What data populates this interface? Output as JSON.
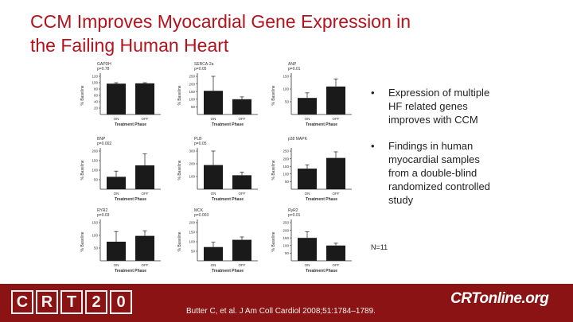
{
  "slide": {
    "title_line1": "CCM Improves Myocardial Gene Expression in",
    "title_line2": "the Failing Human Heart",
    "bullets": [
      "Expression of multiple HF related genes improves with CCM",
      "Findings in human myocardial samples from a double-blind randomized controlled study"
    ],
    "bullet_glyph": "•",
    "n_label": "N=11",
    "footer": {
      "logo_chars": [
        "C",
        "R",
        "T",
        "2",
        "0"
      ],
      "citation": "Butter C, et al. J Am Coll Cardiol 2008;51:1784–1789.",
      "crtonline": "CRTonline.org"
    }
  },
  "colors": {
    "title": "#b5121b",
    "bar": "#1a1a1a",
    "footer": "#8b1313"
  },
  "chart_data": [
    {
      "type": "bar",
      "title": "GAPDH",
      "pvalue": "p=0.78",
      "categories": [
        "ON",
        "OFF"
      ],
      "values": [
        97,
        98
      ],
      "errors": [
        3,
        2
      ],
      "ylabel": "% Baseline",
      "xlabel": "Treatment Phase",
      "ylim": [
        0,
        120
      ],
      "yticks": [
        20,
        40,
        60,
        80,
        100,
        120
      ]
    },
    {
      "type": "bar",
      "title": "SERCA-2a",
      "pvalue": "p=0.05",
      "categories": [
        "ON",
        "OFF"
      ],
      "values": [
        155,
        100
      ],
      "errors": [
        95,
        15
      ],
      "ylabel": "% Baseline",
      "xlabel": "Treatment Phase",
      "ylim": [
        0,
        250
      ],
      "yticks": [
        50,
        100,
        150,
        200,
        250
      ]
    },
    {
      "type": "bar",
      "title": "ANP",
      "pvalue": "p=0.01",
      "categories": [
        "ON",
        "OFF"
      ],
      "values": [
        65,
        110
      ],
      "errors": [
        20,
        30
      ],
      "ylabel": "% Baseline",
      "xlabel": "Treatment Phase",
      "ylim": [
        0,
        150
      ],
      "yticks": [
        50,
        100,
        150
      ]
    },
    {
      "type": "bar",
      "title": "BNP",
      "pvalue": "p=0.002",
      "categories": [
        "ON",
        "OFF"
      ],
      "values": [
        65,
        125
      ],
      "errors": [
        30,
        60
      ],
      "ylabel": "% Baseline",
      "xlabel": "Treatment Phase",
      "ylim": [
        0,
        200
      ],
      "yticks": [
        50,
        100,
        150,
        200
      ]
    },
    {
      "type": "bar",
      "title": "PLB",
      "pvalue": "p=0.05",
      "categories": [
        "ON",
        "OFF"
      ],
      "values": [
        190,
        110
      ],
      "errors": [
        110,
        25
      ],
      "ylabel": "% Baseline",
      "xlabel": "Treatment Phase",
      "ylim": [
        0,
        300
      ],
      "yticks": [
        100,
        200,
        300
      ]
    },
    {
      "type": "bar",
      "title": "p38 MAPK",
      "pvalue": "",
      "categories": [
        "ON",
        "OFF"
      ],
      "values": [
        135,
        205
      ],
      "errors": [
        25,
        40
      ],
      "ylabel": "% Baseline",
      "xlabel": "Treatment Phase",
      "ylim": [
        0,
        250
      ],
      "yticks": [
        50,
        100,
        150,
        200,
        250
      ]
    },
    {
      "type": "bar",
      "title": "RYR2",
      "pvalue": "p=0.03",
      "categories": [
        "ON",
        "OFF"
      ],
      "values": [
        75,
        98
      ],
      "errors": [
        40,
        20
      ],
      "ylabel": "% Baseline",
      "xlabel": "Treatment Phase",
      "ylim": [
        0,
        150
      ],
      "yticks": [
        50,
        100,
        150
      ]
    },
    {
      "type": "bar",
      "title": "MCK",
      "pvalue": "p=0.003",
      "categories": [
        "ON",
        "OFF"
      ],
      "values": [
        72,
        110
      ],
      "errors": [
        25,
        15
      ],
      "ylabel": "% Baseline",
      "xlabel": "Treatment Phase",
      "ylim": [
        0,
        200
      ],
      "yticks": [
        50,
        100,
        150,
        200
      ]
    },
    {
      "type": "bar",
      "title": "RyR2",
      "pvalue": "p=0.01",
      "categories": [
        "ON",
        "OFF"
      ],
      "values": [
        150,
        100
      ],
      "errors": [
        40,
        15
      ],
      "ylabel": "% Baseline",
      "xlabel": "Treatment Phase",
      "ylim": [
        0,
        250
      ],
      "yticks": [
        50,
        100,
        150,
        200,
        250
      ]
    }
  ]
}
